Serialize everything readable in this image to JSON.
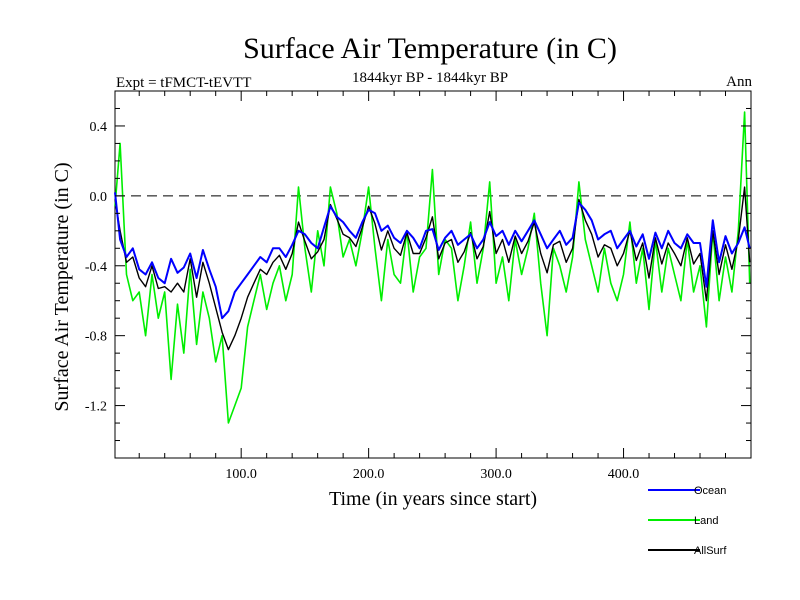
{
  "chart_data": {
    "type": "line",
    "title": "Surface Air Temperature (in C)",
    "subtitle": "1844kyr BP - 1844kyr BP",
    "header_left": "Expt = tFMCT-tEVTT",
    "header_right": "Ann",
    "xlabel": "Time (in years since start)",
    "ylabel": "Surface Air Temperature (in C)",
    "xlim": [
      1,
      500
    ],
    "ylim": [
      -1.5,
      0.6
    ],
    "xticks": [
      100,
      200,
      300,
      400
    ],
    "xtick_labels": [
      "100.0",
      "200.0",
      "300.0",
      "400.0"
    ],
    "yticks": [
      0.4,
      0.0,
      -0.4,
      -0.8,
      -1.2
    ],
    "ytick_labels": [
      "0.4",
      "0.0",
      "-0.4",
      "-0.8",
      "-1.2"
    ],
    "reference_line": 0.0,
    "series": [
      {
        "name": "Ocean",
        "color": "#0000ff",
        "x": [
          1,
          5,
          10,
          15,
          20,
          25,
          30,
          35,
          40,
          45,
          50,
          55,
          60,
          65,
          70,
          75,
          80,
          85,
          90,
          95,
          100,
          105,
          110,
          115,
          120,
          125,
          130,
          135,
          140,
          145,
          150,
          155,
          160,
          165,
          170,
          175,
          180,
          185,
          190,
          195,
          200,
          205,
          210,
          215,
          220,
          225,
          230,
          235,
          240,
          245,
          250,
          255,
          260,
          265,
          270,
          275,
          280,
          285,
          290,
          295,
          300,
          305,
          310,
          315,
          320,
          325,
          330,
          335,
          340,
          345,
          350,
          355,
          360,
          365,
          370,
          375,
          380,
          385,
          390,
          395,
          400,
          405,
          410,
          415,
          420,
          425,
          430,
          435,
          440,
          445,
          450,
          455,
          460,
          465,
          470,
          475,
          480,
          485,
          490,
          495,
          499
        ],
        "values": [
          0.02,
          -0.25,
          -0.35,
          -0.3,
          -0.42,
          -0.45,
          -0.38,
          -0.47,
          -0.5,
          -0.36,
          -0.44,
          -0.41,
          -0.33,
          -0.47,
          -0.31,
          -0.42,
          -0.52,
          -0.7,
          -0.66,
          -0.55,
          -0.5,
          -0.45,
          -0.4,
          -0.35,
          -0.38,
          -0.3,
          -0.3,
          -0.35,
          -0.28,
          -0.2,
          -0.22,
          -0.27,
          -0.3,
          -0.18,
          -0.06,
          -0.12,
          -0.15,
          -0.2,
          -0.24,
          -0.15,
          -0.08,
          -0.1,
          -0.2,
          -0.17,
          -0.24,
          -0.27,
          -0.2,
          -0.24,
          -0.3,
          -0.2,
          -0.19,
          -0.31,
          -0.24,
          -0.2,
          -0.28,
          -0.25,
          -0.22,
          -0.3,
          -0.25,
          -0.15,
          -0.23,
          -0.2,
          -0.28,
          -0.2,
          -0.26,
          -0.2,
          -0.14,
          -0.22,
          -0.3,
          -0.25,
          -0.2,
          -0.28,
          -0.24,
          -0.04,
          -0.08,
          -0.14,
          -0.25,
          -0.22,
          -0.2,
          -0.3,
          -0.25,
          -0.2,
          -0.29,
          -0.22,
          -0.36,
          -0.21,
          -0.3,
          -0.2,
          -0.27,
          -0.3,
          -0.22,
          -0.27,
          -0.27,
          -0.52,
          -0.14,
          -0.38,
          -0.23,
          -0.33,
          -0.27,
          -0.18,
          -0.3
        ]
      },
      {
        "name": "Land",
        "color": "#00ee00",
        "x": [
          1,
          5,
          10,
          15,
          20,
          25,
          30,
          35,
          40,
          45,
          50,
          55,
          60,
          65,
          70,
          75,
          80,
          85,
          90,
          95,
          100,
          105,
          110,
          115,
          120,
          125,
          130,
          135,
          140,
          145,
          150,
          155,
          160,
          165,
          170,
          175,
          180,
          185,
          190,
          195,
          200,
          205,
          210,
          215,
          220,
          225,
          230,
          235,
          240,
          245,
          250,
          255,
          260,
          265,
          270,
          275,
          280,
          285,
          290,
          295,
          300,
          305,
          310,
          315,
          320,
          325,
          330,
          335,
          340,
          345,
          350,
          355,
          360,
          365,
          370,
          375,
          380,
          385,
          390,
          395,
          400,
          405,
          410,
          415,
          420,
          425,
          430,
          435,
          440,
          445,
          450,
          455,
          460,
          465,
          470,
          475,
          480,
          485,
          490,
          495,
          499
        ],
        "values": [
          -0.06,
          0.3,
          -0.45,
          -0.6,
          -0.55,
          -0.8,
          -0.45,
          -0.7,
          -0.55,
          -1.05,
          -0.62,
          -0.9,
          -0.42,
          -0.85,
          -0.55,
          -0.7,
          -0.95,
          -0.8,
          -1.3,
          -1.2,
          -1.1,
          -0.75,
          -0.6,
          -0.45,
          -0.65,
          -0.5,
          -0.4,
          -0.6,
          -0.45,
          0.05,
          -0.3,
          -0.55,
          -0.2,
          -0.4,
          0.05,
          -0.1,
          -0.35,
          -0.25,
          -0.4,
          -0.2,
          0.05,
          -0.3,
          -0.6,
          -0.25,
          -0.45,
          -0.5,
          -0.2,
          -0.55,
          -0.35,
          -0.3,
          0.15,
          -0.45,
          -0.25,
          -0.3,
          -0.6,
          -0.4,
          -0.15,
          -0.5,
          -0.3,
          0.08,
          -0.5,
          -0.35,
          -0.6,
          -0.25,
          -0.45,
          -0.3,
          -0.1,
          -0.5,
          -0.8,
          -0.3,
          -0.4,
          -0.55,
          -0.35,
          0.08,
          -0.25,
          -0.4,
          -0.55,
          -0.3,
          -0.5,
          -0.6,
          -0.45,
          -0.15,
          -0.5,
          -0.3,
          -0.65,
          -0.25,
          -0.55,
          -0.3,
          -0.45,
          -0.6,
          -0.25,
          -0.55,
          -0.4,
          -0.75,
          -0.2,
          -0.6,
          -0.35,
          -0.55,
          -0.2,
          0.48,
          -0.5
        ]
      },
      {
        "name": "AllSurf",
        "color": "#000000",
        "x": [
          1,
          5,
          10,
          15,
          20,
          25,
          30,
          35,
          40,
          45,
          50,
          55,
          60,
          65,
          70,
          75,
          80,
          85,
          90,
          95,
          100,
          105,
          110,
          115,
          120,
          125,
          130,
          135,
          140,
          145,
          150,
          155,
          160,
          165,
          170,
          175,
          180,
          185,
          190,
          195,
          200,
          205,
          210,
          215,
          220,
          225,
          230,
          235,
          240,
          245,
          250,
          255,
          260,
          265,
          270,
          275,
          280,
          285,
          290,
          295,
          300,
          305,
          310,
          315,
          320,
          325,
          330,
          335,
          340,
          345,
          350,
          355,
          360,
          365,
          370,
          375,
          380,
          385,
          390,
          395,
          400,
          405,
          410,
          415,
          420,
          425,
          430,
          435,
          440,
          445,
          450,
          455,
          460,
          465,
          470,
          475,
          480,
          485,
          490,
          495,
          499
        ],
        "values": [
          -0.02,
          -0.2,
          -0.38,
          -0.35,
          -0.47,
          -0.52,
          -0.4,
          -0.53,
          -0.52,
          -0.55,
          -0.5,
          -0.55,
          -0.36,
          -0.58,
          -0.38,
          -0.5,
          -0.64,
          -0.78,
          -0.88,
          -0.8,
          -0.7,
          -0.58,
          -0.5,
          -0.42,
          -0.45,
          -0.38,
          -0.34,
          -0.42,
          -0.33,
          -0.15,
          -0.26,
          -0.36,
          -0.32,
          -0.25,
          -0.05,
          -0.13,
          -0.22,
          -0.24,
          -0.29,
          -0.18,
          -0.06,
          -0.16,
          -0.31,
          -0.2,
          -0.3,
          -0.34,
          -0.21,
          -0.33,
          -0.33,
          -0.24,
          -0.12,
          -0.36,
          -0.27,
          -0.25,
          -0.38,
          -0.32,
          -0.21,
          -0.36,
          -0.29,
          -0.09,
          -0.33,
          -0.25,
          -0.38,
          -0.23,
          -0.33,
          -0.26,
          -0.15,
          -0.33,
          -0.44,
          -0.28,
          -0.26,
          -0.38,
          -0.3,
          -0.02,
          -0.14,
          -0.22,
          -0.35,
          -0.28,
          -0.3,
          -0.4,
          -0.33,
          -0.2,
          -0.37,
          -0.27,
          -0.47,
          -0.24,
          -0.39,
          -0.27,
          -0.33,
          -0.4,
          -0.24,
          -0.39,
          -0.33,
          -0.6,
          -0.2,
          -0.45,
          -0.28,
          -0.42,
          -0.25,
          0.05,
          -0.38
        ]
      }
    ],
    "legend_position": "bottom-right"
  }
}
